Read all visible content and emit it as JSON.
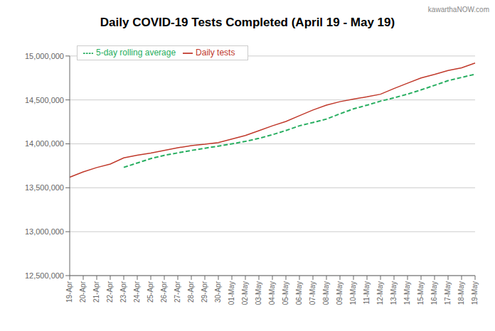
{
  "chart_data": {
    "type": "line",
    "title": "Daily COVID-19 Tests Completed (April 19 - May 19)",
    "annotations": [
      "kawarthaNOW.com"
    ],
    "categories": [
      "19-Apr",
      "20-Apr",
      "21-Apr",
      "22-Apr",
      "23-Apr",
      "24-Apr",
      "25-Apr",
      "26-Apr",
      "27-Apr",
      "28-Apr",
      "29-Apr",
      "30-Apr",
      "01-May",
      "02-May",
      "03-May",
      "04-May",
      "05-May",
      "06-May",
      "07-May",
      "08-May",
      "09-May",
      "10-May",
      "11-May",
      "12-May",
      "13-May",
      "14-May",
      "15-May",
      "16-May",
      "17-May",
      "18-May",
      "19-May"
    ],
    "series": [
      {
        "name": "Daily tests",
        "color": "#c0392b",
        "line_style": "solid",
        "values": [
          13620000,
          13680000,
          13730000,
          13770000,
          13840000,
          13870000,
          13895000,
          13925000,
          13955000,
          13980000,
          13995000,
          14015000,
          14055000,
          14095000,
          14150000,
          14205000,
          14255000,
          14320000,
          14385000,
          14440000,
          14480000,
          14510000,
          14535000,
          14565000,
          14630000,
          14690000,
          14750000,
          14790000,
          14835000,
          14865000,
          14920000
        ]
      },
      {
        "name": "5-day rolling average",
        "color": "#27ae60",
        "line_style": "dashed",
        "values": [
          null,
          null,
          null,
          null,
          13732000,
          13782000,
          13832000,
          13869000,
          13897000,
          13925000,
          13950000,
          13974000,
          14000000,
          14028000,
          14062000,
          14104000,
          14152000,
          14205000,
          14243000,
          14282000,
          14342000,
          14398000,
          14440000,
          14486000,
          14524000,
          14566000,
          14614000,
          14666000,
          14719000,
          14756000,
          14792000
        ]
      }
    ],
    "ylim": [
      12500000,
      15000000
    ],
    "yticks": [
      {
        "value": 12500000,
        "label": "12,500,000"
      },
      {
        "value": 13000000,
        "label": "13,000,000"
      },
      {
        "value": 13500000,
        "label": "13,500,000"
      },
      {
        "value": 14000000,
        "label": "14,000,000"
      },
      {
        "value": 14500000,
        "label": "14,500,000"
      },
      {
        "value": 15000000,
        "label": "15,000,000"
      }
    ],
    "grid": true,
    "legend": "upper left"
  }
}
